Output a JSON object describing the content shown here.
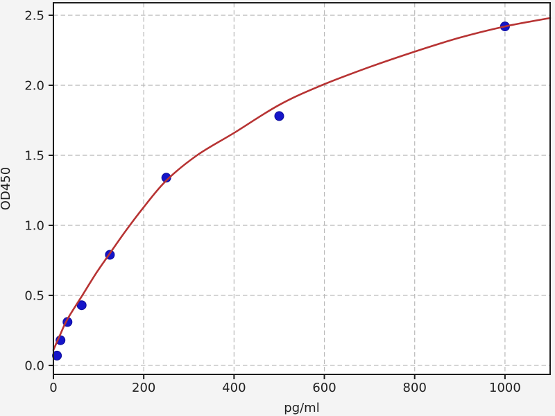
{
  "chart_data": {
    "type": "scatter",
    "title": "",
    "xlabel": "pg/ml",
    "ylabel": "OD450",
    "xlim": [
      0,
      1100
    ],
    "ylim": [
      -0.064,
      2.589
    ],
    "grid": "dashed-both-axes",
    "legend": "none",
    "x_ticks": [
      {
        "value": 0,
        "label": "0"
      },
      {
        "value": 200,
        "label": "200"
      },
      {
        "value": 400,
        "label": "400"
      },
      {
        "value": 600,
        "label": "600"
      },
      {
        "value": 800,
        "label": "800"
      },
      {
        "value": 1000,
        "label": "1000"
      }
    ],
    "y_ticks": [
      {
        "value": 0.0,
        "label": "0.0"
      },
      {
        "value": 0.5,
        "label": "0.5"
      },
      {
        "value": 1.0,
        "label": "1.0"
      },
      {
        "value": 1.5,
        "label": "1.5"
      },
      {
        "value": 2.0,
        "label": "2.0"
      },
      {
        "value": 2.5,
        "label": "2.5"
      }
    ],
    "series": [
      {
        "name": "standard-points",
        "type": "scatter",
        "marker": "circle",
        "marker_radius": 6.5,
        "color": "#1515c9",
        "edge_color": "#0d0d99",
        "points": [
          [
            7.8,
            0.07
          ],
          [
            15.6,
            0.18
          ],
          [
            31.25,
            0.31
          ],
          [
            62.5,
            0.43
          ],
          [
            125,
            0.79
          ],
          [
            250,
            1.34
          ],
          [
            500,
            1.78
          ],
          [
            1000,
            2.42
          ]
        ]
      },
      {
        "name": "fit-curve",
        "type": "line",
        "line_width": 2.6,
        "color": "#b73333",
        "points": [
          [
            0,
            0.11
          ],
          [
            15,
            0.22
          ],
          [
            31,
            0.33
          ],
          [
            62,
            0.49
          ],
          [
            95,
            0.66
          ],
          [
            125,
            0.8
          ],
          [
            160,
            0.96
          ],
          [
            200,
            1.13
          ],
          [
            250,
            1.32
          ],
          [
            318,
            1.5
          ],
          [
            400,
            1.66
          ],
          [
            500,
            1.86
          ],
          [
            594,
            2.0
          ],
          [
            700,
            2.13
          ],
          [
            800,
            2.24
          ],
          [
            900,
            2.34
          ],
          [
            1000,
            2.42
          ],
          [
            1100,
            2.48
          ]
        ]
      }
    ],
    "colors": {
      "figure_bg": "#f4f4f4",
      "plot_bg": "#ffffff",
      "grid": "#b8b8b8",
      "spine": "#1c1c1c",
      "tick": "#1c1c1c",
      "tick_label": "#202020",
      "axis_label": "#202020"
    }
  }
}
